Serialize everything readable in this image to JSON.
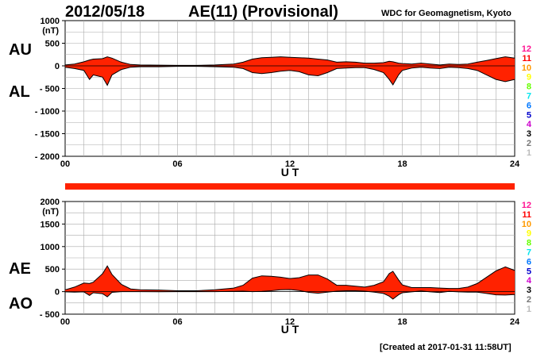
{
  "header": {
    "date": "2012/05/18",
    "title": "AE(11) (Provisional)",
    "source": "WDC for Geomagnetism, Kyoto"
  },
  "footer": {
    "created": "[Created at 2017-01-31 11:58UT]"
  },
  "labels": {
    "au": "AU",
    "al": "AL",
    "ae": "AE",
    "ao": "AO",
    "unit": "(nT)",
    "xlabel": "U T"
  },
  "station_counts": [
    {
      "label": "12",
      "color": "#ff1493"
    },
    {
      "label": "11",
      "color": "#ff0000"
    },
    {
      "label": "10",
      "color": "#ff9900"
    },
    {
      "label": "9",
      "color": "#ffff00"
    },
    {
      "label": "8",
      "color": "#66ff00"
    },
    {
      "label": "7",
      "color": "#00e5ee"
    },
    {
      "label": "6",
      "color": "#0077ff"
    },
    {
      "label": "5",
      "color": "#0000cc"
    },
    {
      "label": "4",
      "color": "#cc00cc"
    },
    {
      "label": "3",
      "color": "#000000"
    },
    {
      "label": "2",
      "color": "#777777"
    },
    {
      "label": "1",
      "color": "#bbbbbb"
    }
  ],
  "colors": {
    "fill": "#ff2200",
    "line": "#000000",
    "grid": "#aaaaaa",
    "coverage_bar": "#ff2200"
  },
  "chart_data": [
    {
      "type": "area",
      "name": "AU/AL",
      "xlabel": "U T",
      "ylabel": "(nT)",
      "xlim": [
        0,
        24
      ],
      "ylim": [
        -2000,
        1000
      ],
      "xticks": [
        0,
        6,
        12,
        18,
        24
      ],
      "xtick_labels": [
        "00",
        "06",
        "12",
        "18",
        "24"
      ],
      "yticks": [
        1000,
        500,
        0,
        -500,
        -1000,
        -1500,
        -2000
      ],
      "ytick_labels": [
        "1000",
        "500",
        "0",
        "- 500",
        "- 1000",
        "- 1500",
        "- 2000"
      ],
      "grid": true,
      "x": [
        0,
        0.5,
        1,
        1.3,
        1.5,
        2,
        2.25,
        2.5,
        3,
        3.5,
        4,
        5,
        6,
        7,
        8,
        9,
        9.5,
        10,
        10.5,
        11,
        11.5,
        12,
        12.5,
        13,
        13.5,
        14,
        14.5,
        15,
        15.5,
        16,
        16.5,
        17,
        17.3,
        17.5,
        17.8,
        18,
        18.5,
        19,
        19.5,
        20,
        20.5,
        21,
        21.5,
        22,
        22.5,
        23,
        23.5,
        24
      ],
      "series": [
        {
          "name": "AU",
          "values": [
            20,
            40,
            90,
            130,
            150,
            160,
            200,
            170,
            80,
            30,
            20,
            15,
            10,
            10,
            20,
            40,
            80,
            150,
            180,
            190,
            200,
            190,
            180,
            170,
            150,
            130,
            80,
            90,
            80,
            60,
            60,
            70,
            100,
            90,
            60,
            50,
            40,
            60,
            40,
            20,
            40,
            30,
            40,
            80,
            120,
            160,
            200,
            170
          ]
        },
        {
          "name": "AL",
          "values": [
            -30,
            -60,
            -100,
            -300,
            -200,
            -250,
            -430,
            -200,
            -80,
            -30,
            -20,
            -20,
            -10,
            -10,
            -20,
            -30,
            -60,
            -150,
            -170,
            -150,
            -120,
            -100,
            -130,
            -200,
            -220,
            -150,
            -60,
            -50,
            -40,
            -40,
            -80,
            -150,
            -300,
            -420,
            -200,
            -100,
            -50,
            -30,
            -50,
            -60,
            -30,
            -40,
            -60,
            -100,
            -200,
            -300,
            -350,
            -300
          ]
        }
      ]
    },
    {
      "type": "area",
      "name": "AE/AO",
      "xlabel": "U T",
      "ylabel": "(nT)",
      "xlim": [
        0,
        24
      ],
      "ylim": [
        -500,
        2000
      ],
      "xticks": [
        0,
        6,
        12,
        18,
        24
      ],
      "xtick_labels": [
        "00",
        "06",
        "12",
        "18",
        "24"
      ],
      "yticks": [
        2000,
        1500,
        1000,
        500,
        0,
        -500
      ],
      "ytick_labels": [
        "2000",
        "1500",
        "1000",
        "500",
        "0",
        "- 500"
      ],
      "grid": true,
      "x": [
        0,
        0.5,
        1,
        1.3,
        1.5,
        2,
        2.25,
        2.5,
        3,
        3.5,
        4,
        5,
        6,
        7,
        8,
        9,
        9.5,
        10,
        10.5,
        11,
        11.5,
        12,
        12.5,
        13,
        13.5,
        14,
        14.5,
        15,
        15.5,
        16,
        16.5,
        17,
        17.3,
        17.5,
        17.8,
        18,
        18.5,
        19,
        19.5,
        20,
        20.5,
        21,
        21.5,
        22,
        22.5,
        23,
        23.5,
        24
      ],
      "series": [
        {
          "name": "AE",
          "values": [
            40,
            100,
            190,
            180,
            210,
            400,
            570,
            380,
            160,
            60,
            40,
            35,
            20,
            20,
            40,
            80,
            140,
            300,
            350,
            340,
            320,
            290,
            310,
            370,
            370,
            280,
            140,
            140,
            120,
            100,
            140,
            220,
            400,
            450,
            260,
            150,
            90,
            90,
            90,
            80,
            70,
            70,
            100,
            180,
            320,
            460,
            550,
            470
          ]
        },
        {
          "name": "AO",
          "values": [
            -5,
            -10,
            -5,
            -85,
            -25,
            -45,
            -115,
            -15,
            0,
            0,
            0,
            -2,
            0,
            0,
            0,
            5,
            10,
            0,
            5,
            20,
            40,
            45,
            25,
            -15,
            -35,
            -10,
            10,
            20,
            20,
            10,
            -10,
            -40,
            -100,
            -165,
            -70,
            -25,
            -5,
            15,
            -5,
            -20,
            5,
            -5,
            -10,
            -10,
            -40,
            -70,
            -75,
            -65
          ]
        }
      ]
    }
  ]
}
